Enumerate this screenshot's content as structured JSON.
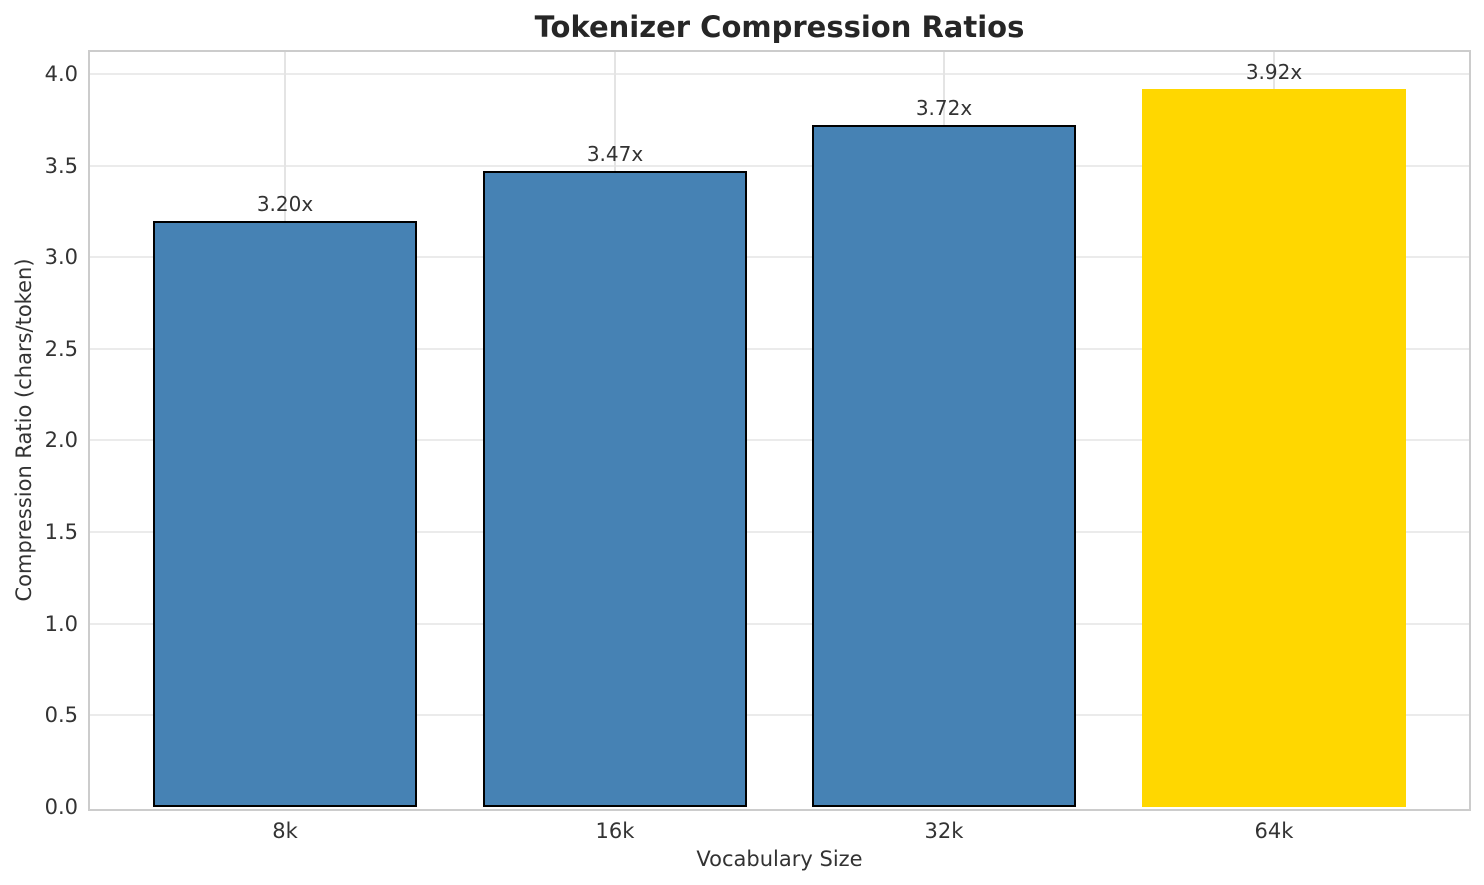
{
  "chart_data": {
    "type": "bar",
    "title": "Tokenizer Compression Ratios",
    "xlabel": "Vocabulary Size",
    "ylabel": "Compression Ratio (chars/token)",
    "categories": [
      "8k",
      "16k",
      "32k",
      "64k"
    ],
    "values": [
      3.2,
      3.47,
      3.72,
      3.92
    ],
    "bar_labels": [
      "3.20x",
      "3.47x",
      "3.72x",
      "3.92x"
    ],
    "bar_colors": [
      "#4682b4",
      "#4682b4",
      "#4682b4",
      "#ffd700"
    ],
    "bar_edge_colors": [
      "#000000",
      "#000000",
      "#000000",
      "none"
    ],
    "highlighted_category": "64k",
    "ytick_labels": [
      "0.0",
      "0.5",
      "1.0",
      "1.5",
      "2.0",
      "2.5",
      "3.0",
      "3.5",
      "4.0"
    ],
    "ylim": [
      0,
      4.12
    ],
    "grid": true,
    "legend": "none",
    "colors": {
      "bar_default": "#4682b4",
      "bar_highlight": "#ffd700",
      "bar_edge": "#000000",
      "grid": "#ebebeb",
      "spine": "#cccccc",
      "tick_text": "#333333",
      "title_text": "#262626",
      "background": "#ffffff"
    }
  }
}
